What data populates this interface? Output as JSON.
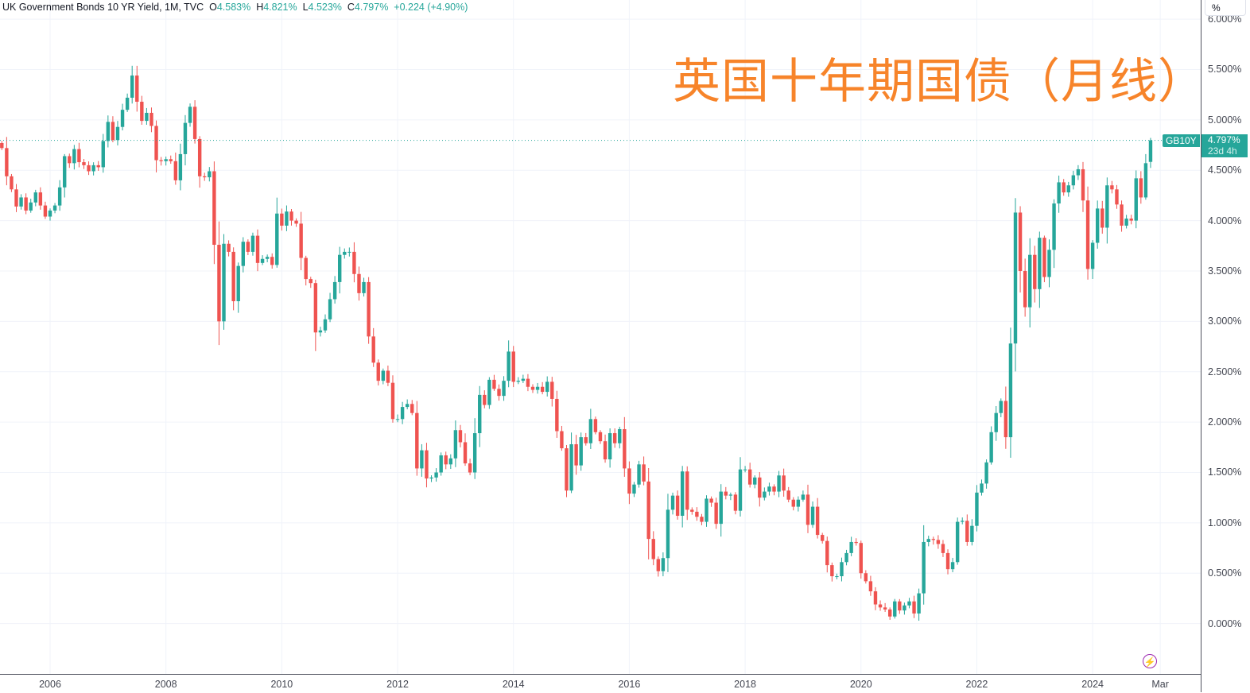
{
  "legend": {
    "symbol": "UK Government Bonds 10 YR Yield, 1M, TVC",
    "o_label": "O",
    "o": "4.583%",
    "h_label": "H",
    "h": "4.821%",
    "l_label": "L",
    "l": "4.523%",
    "c_label": "C",
    "c": "4.797%",
    "change": "+0.224 (+4.90%)"
  },
  "overlay_title": "英国十年期国债（月线）",
  "price_scale_button": "%",
  "price_tag": {
    "symbol": "GB10Y",
    "value": "4.797%",
    "countdown": "23d 4h"
  },
  "icons": {
    "bottom_right": "lightning-bolt-icon"
  },
  "colors": {
    "up": "#26a69a",
    "down": "#ef5350",
    "title": "#f7842a",
    "grid": "#f0f3fa"
  },
  "chart_data": {
    "type": "candlestick",
    "interval": "1M",
    "start": "2005-03",
    "first_open": 4.77,
    "closes": [
      4.72,
      4.44,
      4.31,
      4.14,
      4.23,
      4.1,
      4.18,
      4.28,
      4.15,
      4.04,
      4.1,
      4.15,
      4.33,
      4.64,
      4.57,
      4.71,
      4.58,
      4.55,
      4.49,
      4.55,
      4.53,
      4.79,
      4.98,
      4.8,
      4.93,
      5.1,
      5.22,
      5.44,
      5.18,
      4.99,
      5.07,
      4.94,
      4.6,
      4.59,
      4.61,
      4.59,
      4.4,
      4.66,
      4.97,
      5.13,
      4.81,
      4.44,
      4.43,
      4.49,
      3.76,
      3.0,
      3.77,
      3.69,
      3.2,
      3.55,
      3.79,
      3.69,
      3.85,
      3.58,
      3.62,
      3.64,
      3.56,
      4.07,
      3.95,
      4.09,
      4.0,
      3.97,
      3.63,
      3.42,
      3.38,
      2.89,
      2.91,
      3.02,
      3.22,
      3.39,
      3.66,
      3.69,
      3.69,
      3.47,
      3.28,
      3.39,
      2.85,
      2.59,
      2.41,
      2.51,
      2.39,
      2.03,
      2.03,
      2.15,
      2.18,
      2.09,
      1.54,
      1.72,
      1.44,
      1.45,
      1.5,
      1.67,
      1.58,
      1.64,
      1.92,
      1.8,
      1.59,
      1.5,
      1.89,
      2.27,
      2.17,
      2.42,
      2.33,
      2.26,
      2.41,
      2.7,
      2.4,
      2.41,
      2.43,
      2.35,
      2.32,
      2.35,
      2.3,
      2.4,
      2.23,
      1.91,
      1.74,
      1.32,
      1.78,
      1.57,
      1.85,
      1.79,
      2.03,
      1.9,
      1.81,
      1.63,
      1.89,
      1.79,
      1.93,
      1.54,
      1.29,
      1.38,
      1.58,
      1.41,
      0.84,
      0.64,
      0.52,
      0.65,
      1.13,
      1.27,
      1.07,
      1.51,
      1.13,
      1.11,
      1.06,
      1.01,
      1.24,
      1.2,
      0.99,
      1.31,
      1.27,
      1.28,
      1.12,
      1.53,
      1.53,
      1.38,
      1.45,
      1.25,
      1.31,
      1.36,
      1.31,
      1.47,
      1.32,
      1.23,
      1.16,
      1.23,
      1.28,
      0.98,
      1.16,
      0.88,
      0.82,
      0.58,
      0.47,
      0.47,
      0.61,
      0.7,
      0.81,
      0.8,
      0.5,
      0.42,
      0.32,
      0.19,
      0.16,
      0.14,
      0.07,
      0.22,
      0.13,
      0.18,
      0.22,
      0.1,
      0.3,
      0.81,
      0.84,
      0.83,
      0.79,
      0.7,
      0.54,
      0.61,
      1.01,
      1.02,
      0.81,
      0.97,
      1.3,
      1.39,
      1.6,
      1.9,
      2.09,
      2.21,
      1.85,
      2.78,
      4.08,
      3.5,
      3.14,
      3.66,
      3.32,
      3.83,
      3.44,
      3.71,
      4.17,
      4.38,
      4.28,
      4.35,
      4.45,
      4.51,
      4.2,
      3.52,
      3.78,
      4.12,
      3.93,
      4.35,
      4.31,
      4.16,
      3.95,
      4.02,
      4.0,
      4.42,
      4.23,
      4.57
    ],
    "last_bar": {
      "date": "2025-01",
      "open": 4.583,
      "high": 4.821,
      "low": 4.523,
      "close": 4.797
    },
    "x_ticks": [
      "2006",
      "2008",
      "2010",
      "2012",
      "2014",
      "2016",
      "2018",
      "2020",
      "2022",
      "2024",
      "Mar"
    ],
    "y_ticks": [
      "6.000%",
      "5.500%",
      "5.000%",
      "4.500%",
      "4.000%",
      "3.500%",
      "3.000%",
      "2.500%",
      "2.000%",
      "1.500%",
      "1.000%",
      "0.500%",
      "0.000%"
    ],
    "ylim": [
      -0.5,
      6.19
    ],
    "grid": true,
    "last_price_line": 4.797
  }
}
